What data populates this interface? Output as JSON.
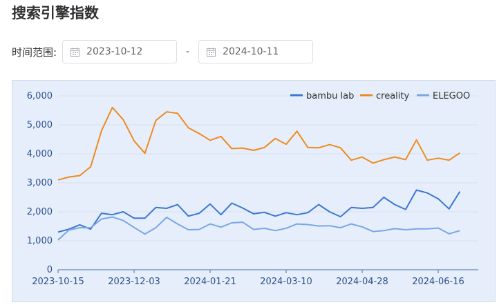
{
  "page": {
    "title": "搜索引擎指数"
  },
  "filter": {
    "label": "时间范围:",
    "start_date": "2023-10-12",
    "end_date": "2024-10-11",
    "separator": "-"
  },
  "colors": {
    "bambu_lab": "#3b77d4",
    "creality": "#f08a1e",
    "elegoo": "#7aa6e6",
    "panel_bg": "#e5eefa"
  },
  "chart_data": {
    "type": "line",
    "x_ticks": [
      "2023-10-15",
      "2023-12-03",
      "2024-01-21",
      "2024-03-10",
      "2024-04-28",
      "2024-06-16"
    ],
    "y_ticks": [
      "0",
      "1,000",
      "2,000",
      "3,000",
      "4,000",
      "5,000",
      "6,000"
    ],
    "ylim": [
      0,
      6000
    ],
    "x": [
      "2023-10-15",
      "2023-10-22",
      "2023-10-29",
      "2023-11-05",
      "2023-11-12",
      "2023-11-19",
      "2023-11-26",
      "2023-12-03",
      "2023-12-10",
      "2023-12-17",
      "2023-12-24",
      "2023-12-31",
      "2024-01-07",
      "2024-01-14",
      "2024-01-21",
      "2024-01-28",
      "2024-02-04",
      "2024-02-11",
      "2024-02-18",
      "2024-02-25",
      "2024-03-03",
      "2024-03-10",
      "2024-03-17",
      "2024-03-24",
      "2024-03-31",
      "2024-04-07",
      "2024-04-14",
      "2024-04-21",
      "2024-04-28",
      "2024-05-05",
      "2024-05-12",
      "2024-05-19",
      "2024-05-26",
      "2024-06-02",
      "2024-06-09",
      "2024-06-16",
      "2024-06-23",
      "2024-06-30"
    ],
    "legend_position": "top-right",
    "series": [
      {
        "name": "bambu lab",
        "color_key": "bambu_lab",
        "values": [
          1300,
          1400,
          1550,
          1400,
          1950,
          1900,
          2000,
          1780,
          1780,
          2150,
          2120,
          2250,
          1850,
          1950,
          2270,
          1900,
          2300,
          2130,
          1930,
          1980,
          1850,
          1970,
          1900,
          1970,
          2250,
          2000,
          1830,
          2150,
          2120,
          2150,
          2500,
          2250,
          2080,
          2750,
          2650,
          2450,
          2100,
          2700
        ]
      },
      {
        "name": "creality",
        "color_key": "creality",
        "values": [
          3100,
          3200,
          3250,
          3550,
          4800,
          5600,
          5180,
          4450,
          4020,
          5150,
          5450,
          5400,
          4900,
          4700,
          4470,
          4600,
          4180,
          4200,
          4120,
          4220,
          4530,
          4330,
          4780,
          4220,
          4210,
          4320,
          4210,
          3780,
          3890,
          3680,
          3800,
          3890,
          3800,
          4480,
          3780,
          3850,
          3780,
          4030
        ]
      },
      {
        "name": "ELEGOO",
        "color_key": "elegoo",
        "values": [
          1030,
          1370,
          1450,
          1450,
          1750,
          1820,
          1700,
          1460,
          1230,
          1450,
          1810,
          1580,
          1380,
          1390,
          1580,
          1470,
          1620,
          1640,
          1390,
          1430,
          1350,
          1430,
          1580,
          1560,
          1510,
          1520,
          1450,
          1580,
          1480,
          1320,
          1350,
          1420,
          1380,
          1410,
          1410,
          1440,
          1240,
          1350
        ]
      }
    ]
  }
}
